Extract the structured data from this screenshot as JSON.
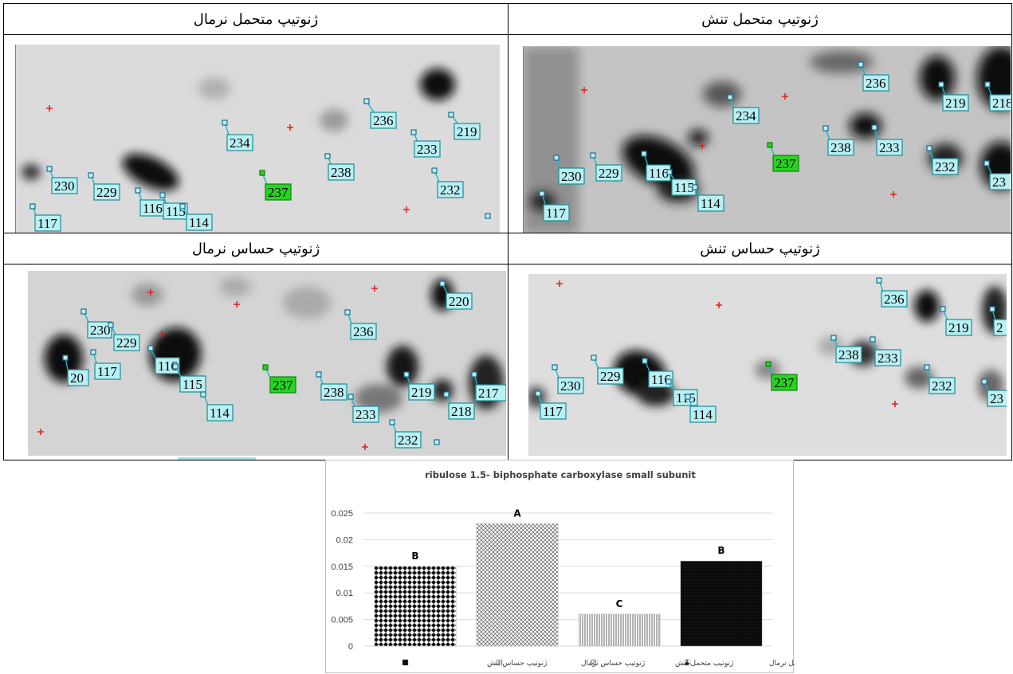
{
  "panels": {
    "tolerant_stress": "ژنوتیپ متحمل تنش",
    "tolerant_normal": "ژنوتیپ متحمل نرمال",
    "sensitive_stress": "ژنوتیپ حساس تنش",
    "sensitive_normal": "ژنوتیپ حساس نرمال"
  },
  "spot_labels": {
    "tolerant_normal": [
      "236",
      "219",
      "234",
      "233",
      "238",
      "230",
      "229",
      "237",
      "232",
      "116",
      "115",
      "114",
      "117"
    ],
    "tolerant_stress": [
      "236",
      "219",
      "218",
      "234",
      "238",
      "233",
      "237",
      "230",
      "229",
      "116",
      "232",
      "23",
      "115",
      "114",
      "117"
    ],
    "sensitive_normal": [
      "220",
      "236",
      "230",
      "229",
      "116",
      "117",
      "20",
      "115",
      "237",
      "238",
      "219",
      "217",
      "114",
      "218",
      "233",
      "232"
    ],
    "sensitive_stress": [
      "236",
      "219",
      "2",
      "238",
      "233",
      "230",
      "229",
      "116",
      "237",
      "115",
      "114",
      "232",
      "23",
      "117"
    ]
  },
  "chart_data": {
    "type": "bar",
    "title": "ribulose 1.5- biphosphate carboxylase small subunit",
    "categories": [
      "ژنوتیپ متحمل نرمال",
      "ژنوتیپ متحمل تنش",
      "ژنوتیپ حساس نرمال",
      "ژنوتیپ حساس تنش"
    ],
    "values": [
      0.015,
      0.023,
      0.006,
      0.016
    ],
    "data_labels": [
      "B",
      "A",
      "C",
      "B"
    ],
    "ylim": [
      0,
      0.025
    ],
    "yticks": [
      "0",
      "0.005",
      "0.01",
      "0.015",
      "0.02",
      "0.025"
    ],
    "legend": [
      "ژنوتیپ متحمل نرمال",
      "ژنوتیپ متحمل تنش",
      "ژنوتیپ حساس نرمال",
      "ژنوتیپ حساس تنش"
    ],
    "legend_placement": "bottom",
    "grid": true,
    "xlabel": "",
    "ylabel": ""
  }
}
